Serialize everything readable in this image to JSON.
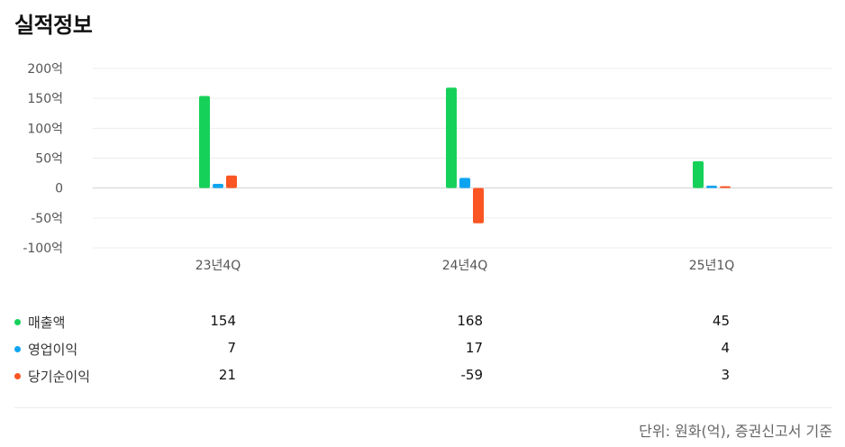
{
  "title": "실적정보",
  "footnote": "단위: 원화(억), 증권신고서 기준",
  "chart_data": {
    "type": "bar",
    "categories": [
      "23년4Q",
      "24년4Q",
      "25년1Q"
    ],
    "y_ticks": [
      "200억",
      "150억",
      "100억",
      "50억",
      "0",
      "-50억",
      "-100억"
    ],
    "ylim": [
      -100,
      200
    ],
    "grid": true,
    "series": [
      {
        "name": "매출액",
        "color": "#16d159",
        "values": [
          154,
          168,
          45
        ],
        "labels": [
          "154",
          "168",
          "45"
        ]
      },
      {
        "name": "영업이익",
        "color": "#0ea5f0",
        "values": [
          7,
          17,
          4
        ],
        "labels": [
          "7",
          "17",
          "4"
        ]
      },
      {
        "name": "당기순이익",
        "color": "#fa5523",
        "values": [
          21,
          -59,
          3
        ],
        "labels": [
          "21",
          "-59",
          "3"
        ]
      }
    ]
  }
}
